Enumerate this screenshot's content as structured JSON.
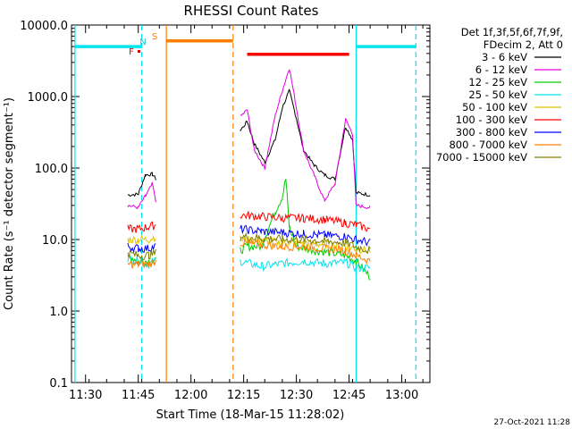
{
  "chart_data": {
    "type": "line",
    "title": "RHESSI Count Rates",
    "xlabel": "Start Time (18-Mar-15 11:28:02)",
    "ylabel": "Count Rate (s⁻¹ detector segment⁻¹)",
    "yscale": "log",
    "ylim": [
      0.1,
      10000
    ],
    "xlim": [
      "11:26",
      "13:08"
    ],
    "x_ticks": [
      "11:30",
      "11:45",
      "12:00",
      "12:15",
      "12:30",
      "12:45",
      "13:00"
    ],
    "y_ticks": [
      "0.1",
      "1.0",
      "10.0",
      "100.0",
      "1000.0",
      "10000.0"
    ],
    "legend_header": [
      "Det 1f,3f,5f,6f,7f,9f,",
      "FDecim 2, Att 0"
    ],
    "legend_position": "outside-right",
    "timestamp": "27-Oct-2021 11:28",
    "flag_labels": [
      {
        "label": "F",
        "color": "#e00000"
      },
      {
        "label": "N",
        "color": "#00cccc"
      },
      {
        "label": "S",
        "color": "#ff8000"
      }
    ],
    "flag_bars": [
      {
        "name": "night",
        "color": "#00e5ee",
        "x": [
          "11:27",
          "11:46"
        ],
        "y": 5000
      },
      {
        "name": "saa",
        "color": "#ff8000",
        "x": [
          "11:53",
          "12:12"
        ],
        "y": 6000
      },
      {
        "name": "flare",
        "color": "#ff0000",
        "x": [
          "12:16",
          "12:45"
        ],
        "y": 3900
      },
      {
        "name": "night",
        "color": "#00e5ee",
        "x": [
          "12:47",
          "13:04"
        ],
        "y": 5000
      }
    ],
    "vlines": [
      {
        "x": "11:27",
        "color": "#00e5ee",
        "style": "solid"
      },
      {
        "x": "11:46",
        "color": "#00e5ee",
        "style": "dashed"
      },
      {
        "x": "11:53",
        "color": "#ff8000",
        "style": "solid"
      },
      {
        "x": "12:12",
        "color": "#ff8000",
        "style": "dashed"
      },
      {
        "x": "12:47",
        "color": "#00e5ee",
        "style": "solid"
      },
      {
        "x": "13:04",
        "color": "#00e5ee",
        "style": "dashed"
      }
    ],
    "series": [
      {
        "name": "3 - 6 keV",
        "color": "#000000",
        "points": [
          [
            "11:42",
            42
          ],
          [
            "11:45",
            43
          ],
          [
            "11:47",
            80
          ],
          [
            "11:49",
            82
          ],
          [
            "11:50",
            70
          ],
          [
            "12:14",
            330
          ],
          [
            "12:16",
            450
          ],
          [
            "12:18",
            220
          ],
          [
            "12:21",
            120
          ],
          [
            "12:24",
            250
          ],
          [
            "12:26",
            700
          ],
          [
            "12:28",
            1200
          ],
          [
            "12:30",
            500
          ],
          [
            "12:32",
            180
          ],
          [
            "12:35",
            110
          ],
          [
            "12:38",
            80
          ],
          [
            "12:41",
            70
          ],
          [
            "12:44",
            380
          ],
          [
            "12:46",
            250
          ],
          [
            "12:47",
            45
          ],
          [
            "12:51",
            42
          ]
        ]
      },
      {
        "name": "6 - 12 keV",
        "color": "#e000e0",
        "points": [
          [
            "11:42",
            30
          ],
          [
            "11:45",
            28
          ],
          [
            "11:47",
            40
          ],
          [
            "11:49",
            60
          ],
          [
            "11:50",
            35
          ],
          [
            "12:14",
            520
          ],
          [
            "12:16",
            650
          ],
          [
            "12:18",
            180
          ],
          [
            "12:21",
            100
          ],
          [
            "12:24",
            550
          ],
          [
            "12:26",
            1200
          ],
          [
            "12:28",
            2500
          ],
          [
            "12:30",
            700
          ],
          [
            "12:32",
            180
          ],
          [
            "12:35",
            80
          ],
          [
            "12:38",
            35
          ],
          [
            "12:41",
            60
          ],
          [
            "12:44",
            480
          ],
          [
            "12:46",
            300
          ],
          [
            "12:47",
            30
          ],
          [
            "12:51",
            28
          ]
        ]
      },
      {
        "name": "12 - 25 keV",
        "color": "#00cc00",
        "points": [
          [
            "11:42",
            6
          ],
          [
            "11:45",
            5
          ],
          [
            "11:47",
            5
          ],
          [
            "11:50",
            5
          ],
          [
            "12:14",
            7
          ],
          [
            "12:16",
            8
          ],
          [
            "12:20",
            8
          ],
          [
            "12:24",
            25
          ],
          [
            "12:26",
            40
          ],
          [
            "12:27",
            70
          ],
          [
            "12:28",
            15
          ],
          [
            "12:30",
            8
          ],
          [
            "12:36",
            7
          ],
          [
            "12:44",
            6
          ],
          [
            "12:47",
            5
          ],
          [
            "12:51",
            3
          ]
        ]
      },
      {
        "name": "25 - 50 keV",
        "color": "#00e5ee",
        "points": [
          [
            "11:42",
            5.5
          ],
          [
            "11:45",
            5
          ],
          [
            "11:48",
            4.5
          ],
          [
            "11:50",
            5
          ],
          [
            "12:14",
            5
          ],
          [
            "12:20",
            4.2
          ],
          [
            "12:26",
            4.6
          ],
          [
            "12:32",
            5
          ],
          [
            "12:38",
            4.6
          ],
          [
            "12:44",
            4.8
          ],
          [
            "12:47",
            4
          ],
          [
            "12:51",
            4
          ]
        ]
      },
      {
        "name": "50 - 100 keV",
        "color": "#e0c000",
        "points": [
          [
            "11:42",
            10
          ],
          [
            "11:45",
            10
          ],
          [
            "11:48",
            10
          ],
          [
            "11:50",
            11
          ],
          [
            "12:14",
            10
          ],
          [
            "12:20",
            9.5
          ],
          [
            "12:26",
            9
          ],
          [
            "12:32",
            9
          ],
          [
            "12:38",
            8.5
          ],
          [
            "12:44",
            8
          ],
          [
            "12:47",
            7.5
          ],
          [
            "12:51",
            7
          ]
        ]
      },
      {
        "name": "100 - 300 keV",
        "color": "#ff0000",
        "points": [
          [
            "11:42",
            14
          ],
          [
            "11:45",
            14
          ],
          [
            "11:48",
            15
          ],
          [
            "11:50",
            16
          ],
          [
            "12:14",
            22
          ],
          [
            "12:20",
            21
          ],
          [
            "12:26",
            20
          ],
          [
            "12:32",
            20
          ],
          [
            "12:38",
            19
          ],
          [
            "12:44",
            17
          ],
          [
            "12:47",
            16
          ],
          [
            "12:51",
            14
          ]
        ]
      },
      {
        "name": "300 - 800 keV",
        "color": "#0000ff",
        "points": [
          [
            "11:42",
            8
          ],
          [
            "11:45",
            7.5
          ],
          [
            "11:48",
            7.5
          ],
          [
            "11:50",
            8
          ],
          [
            "12:14",
            14
          ],
          [
            "12:20",
            13
          ],
          [
            "12:26",
            12.5
          ],
          [
            "12:32",
            12
          ],
          [
            "12:38",
            11.5
          ],
          [
            "12:44",
            11
          ],
          [
            "12:47",
            10
          ],
          [
            "12:51",
            9
          ]
        ]
      },
      {
        "name": "800 - 7000 keV",
        "color": "#ff8000",
        "points": [
          [
            "11:42",
            4.5
          ],
          [
            "11:45",
            4.5
          ],
          [
            "11:48",
            4.5
          ],
          [
            "11:50",
            5
          ],
          [
            "12:14",
            9
          ],
          [
            "12:20",
            8.5
          ],
          [
            "12:26",
            8
          ],
          [
            "12:32",
            8
          ],
          [
            "12:38",
            7.5
          ],
          [
            "12:44",
            7
          ],
          [
            "12:47",
            6
          ],
          [
            "12:51",
            5
          ]
        ]
      },
      {
        "name": "7000 - 15000 keV",
        "color": "#808000",
        "points": [
          [
            "11:42",
            6.5
          ],
          [
            "11:45",
            6
          ],
          [
            "11:48",
            6
          ],
          [
            "11:50",
            6.5
          ],
          [
            "12:14",
            11
          ],
          [
            "12:20",
            10.5
          ],
          [
            "12:26",
            10
          ],
          [
            "12:32",
            10
          ],
          [
            "12:38",
            9.5
          ],
          [
            "12:44",
            9
          ],
          [
            "12:47",
            8
          ],
          [
            "12:51",
            7
          ]
        ]
      }
    ]
  }
}
